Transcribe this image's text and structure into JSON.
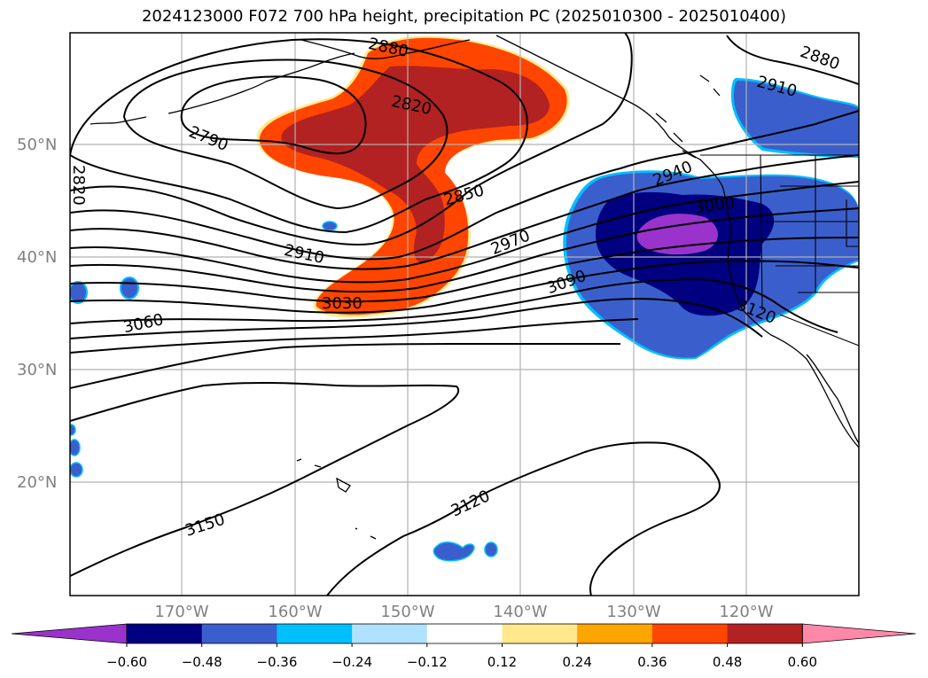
{
  "title": "2024123000 F072 700 hPa height, precipitation PC (2025010300 - 2025010400)",
  "lat_labels": [
    "50°N",
    "40°N",
    "30°N",
    "20°N"
  ],
  "lon_labels": [
    "170°W",
    "160°W",
    "150°W",
    "140°W",
    "130°W",
    "120°W"
  ],
  "contour_labels": [
    "2880",
    "2820",
    "2790",
    "2820",
    "2850",
    "2910",
    "2970",
    "3030",
    "3060",
    "2940",
    "3000",
    "3090",
    "3120",
    "2880",
    "2910",
    "3120",
    "3150"
  ],
  "colorbar": {
    "tick_labels": [
      "−0.60",
      "−0.48",
      "−0.36",
      "−0.24",
      "−0.12",
      "0.12",
      "0.24",
      "0.36",
      "0.48",
      "0.60"
    ],
    "colors": [
      "#9933cc",
      "#000080",
      "#3a5fcd",
      "#00bfff",
      "#b0e2ff",
      "#ffffff",
      "#ffe98c",
      "#ffa500",
      "#ff4500",
      "#b22222",
      "#ff88a8"
    ]
  },
  "colors": {
    "contour": "#000000",
    "grid": "#b0b0b0",
    "coast": "#000000"
  }
}
